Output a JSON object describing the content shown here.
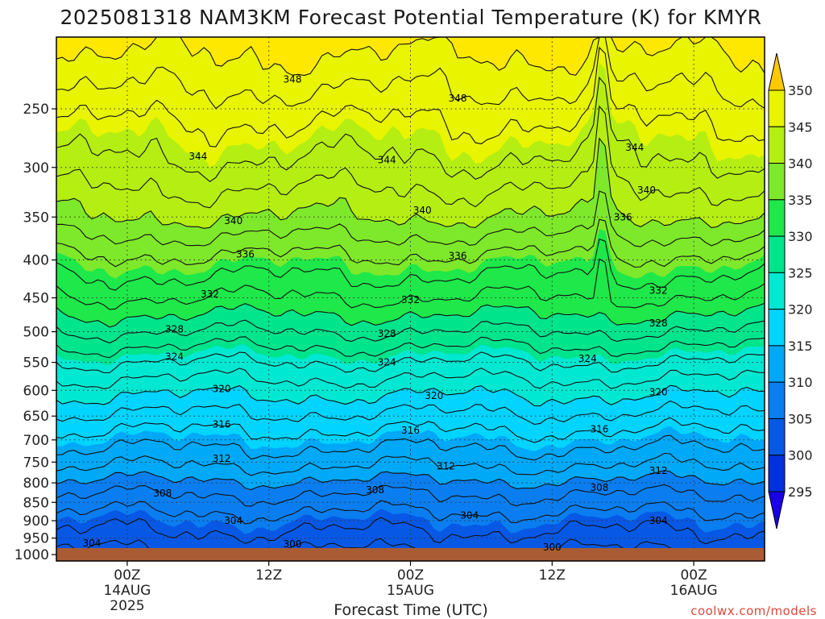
{
  "chart_data": {
    "type": "heatmap",
    "title": "2025081318 NAM3KM Forecast Potential Temperature (K) for KMYR",
    "xlabel": "Forecast Time (UTC)",
    "ylabel": "",
    "credit": "coolwx.com/models",
    "y_scale": "log-pressure",
    "ylim": [
      1020,
      200
    ],
    "x_ticks": [
      {
        "line1": "00Z",
        "line2": "14AUG",
        "line3": "2025",
        "hour": 6
      },
      {
        "line1": "12Z",
        "line2": "",
        "line3": "",
        "hour": 18
      },
      {
        "line1": "00Z",
        "line2": "15AUG",
        "line3": "",
        "hour": 30
      },
      {
        "line1": "12Z",
        "line2": "",
        "line3": "",
        "hour": 42
      },
      {
        "line1": "00Z",
        "line2": "16AUG",
        "line3": "",
        "hour": 54
      }
    ],
    "xlim_hours": [
      0,
      60
    ],
    "y_ticks": [
      "250",
      "300",
      "350",
      "400",
      "450",
      "500",
      "550",
      "600",
      "650",
      "700",
      "750",
      "800",
      "850",
      "900",
      "950",
      "1000"
    ],
    "y_tick_values": [
      250,
      300,
      350,
      400,
      450,
      500,
      550,
      600,
      650,
      700,
      750,
      800,
      850,
      900,
      950,
      1000
    ],
    "grid": true,
    "colorbar": {
      "levels": [
        295,
        300,
        305,
        310,
        315,
        320,
        325,
        330,
        335,
        340,
        345,
        350
      ],
      "labels": [
        "350",
        "345",
        "340",
        "335",
        "330",
        "325",
        "320",
        "315",
        "310",
        "305",
        "300",
        "295"
      ],
      "colors": [
        "#1a00e6",
        "#0030e0",
        "#0858e6",
        "#0a7ef0",
        "#00a8f8",
        "#00d4ff",
        "#00e8d2",
        "#00e48c",
        "#1ee84a",
        "#7ee82a",
        "#b4ee12",
        "#e8f400",
        "#ffe800",
        "#ffc800"
      ],
      "position": "right"
    },
    "contour_interval": 2,
    "contour_labels": [
      {
        "value": "348",
        "hour": 20,
        "pressure": 228
      },
      {
        "value": "348",
        "hour": 34,
        "pressure": 242
      },
      {
        "value": "344",
        "hour": 12,
        "pressure": 290
      },
      {
        "value": "344",
        "hour": 28,
        "pressure": 293
      },
      {
        "value": "344",
        "hour": 49,
        "pressure": 282
      },
      {
        "value": "340",
        "hour": 15,
        "pressure": 354
      },
      {
        "value": "340",
        "hour": 31,
        "pressure": 343
      },
      {
        "value": "340",
        "hour": 50,
        "pressure": 322
      },
      {
        "value": "336",
        "hour": 48,
        "pressure": 350
      },
      {
        "value": "336",
        "hour": 16,
        "pressure": 393
      },
      {
        "value": "336",
        "hour": 34,
        "pressure": 395
      },
      {
        "value": "332",
        "hour": 13,
        "pressure": 445
      },
      {
        "value": "332",
        "hour": 30,
        "pressure": 453
      },
      {
        "value": "332",
        "hour": 51,
        "pressure": 440
      },
      {
        "value": "328",
        "hour": 10,
        "pressure": 496
      },
      {
        "value": "328",
        "hour": 28,
        "pressure": 503
      },
      {
        "value": "328",
        "hour": 51,
        "pressure": 487
      },
      {
        "value": "324",
        "hour": 10,
        "pressure": 540
      },
      {
        "value": "324",
        "hour": 28,
        "pressure": 550
      },
      {
        "value": "324",
        "hour": 45,
        "pressure": 544
      },
      {
        "value": "320",
        "hour": 14,
        "pressure": 597
      },
      {
        "value": "320",
        "hour": 32,
        "pressure": 610
      },
      {
        "value": "320",
        "hour": 51,
        "pressure": 603
      },
      {
        "value": "316",
        "hour": 14,
        "pressure": 667
      },
      {
        "value": "316",
        "hour": 30,
        "pressure": 680
      },
      {
        "value": "316",
        "hour": 46,
        "pressure": 677
      },
      {
        "value": "312",
        "hour": 14,
        "pressure": 742
      },
      {
        "value": "312",
        "hour": 33,
        "pressure": 760
      },
      {
        "value": "312",
        "hour": 51,
        "pressure": 770
      },
      {
        "value": "308",
        "hour": 9,
        "pressure": 826
      },
      {
        "value": "308",
        "hour": 27,
        "pressure": 818
      },
      {
        "value": "308",
        "hour": 46,
        "pressure": 812
      },
      {
        "value": "304",
        "hour": 15,
        "pressure": 900
      },
      {
        "value": "304",
        "hour": 35,
        "pressure": 885
      },
      {
        "value": "304",
        "hour": 51,
        "pressure": 900
      },
      {
        "value": "304",
        "hour": 3,
        "pressure": 965
      },
      {
        "value": "300",
        "hour": 20,
        "pressure": 968
      },
      {
        "value": "300",
        "hour": 42,
        "pressure": 978
      }
    ]
  }
}
